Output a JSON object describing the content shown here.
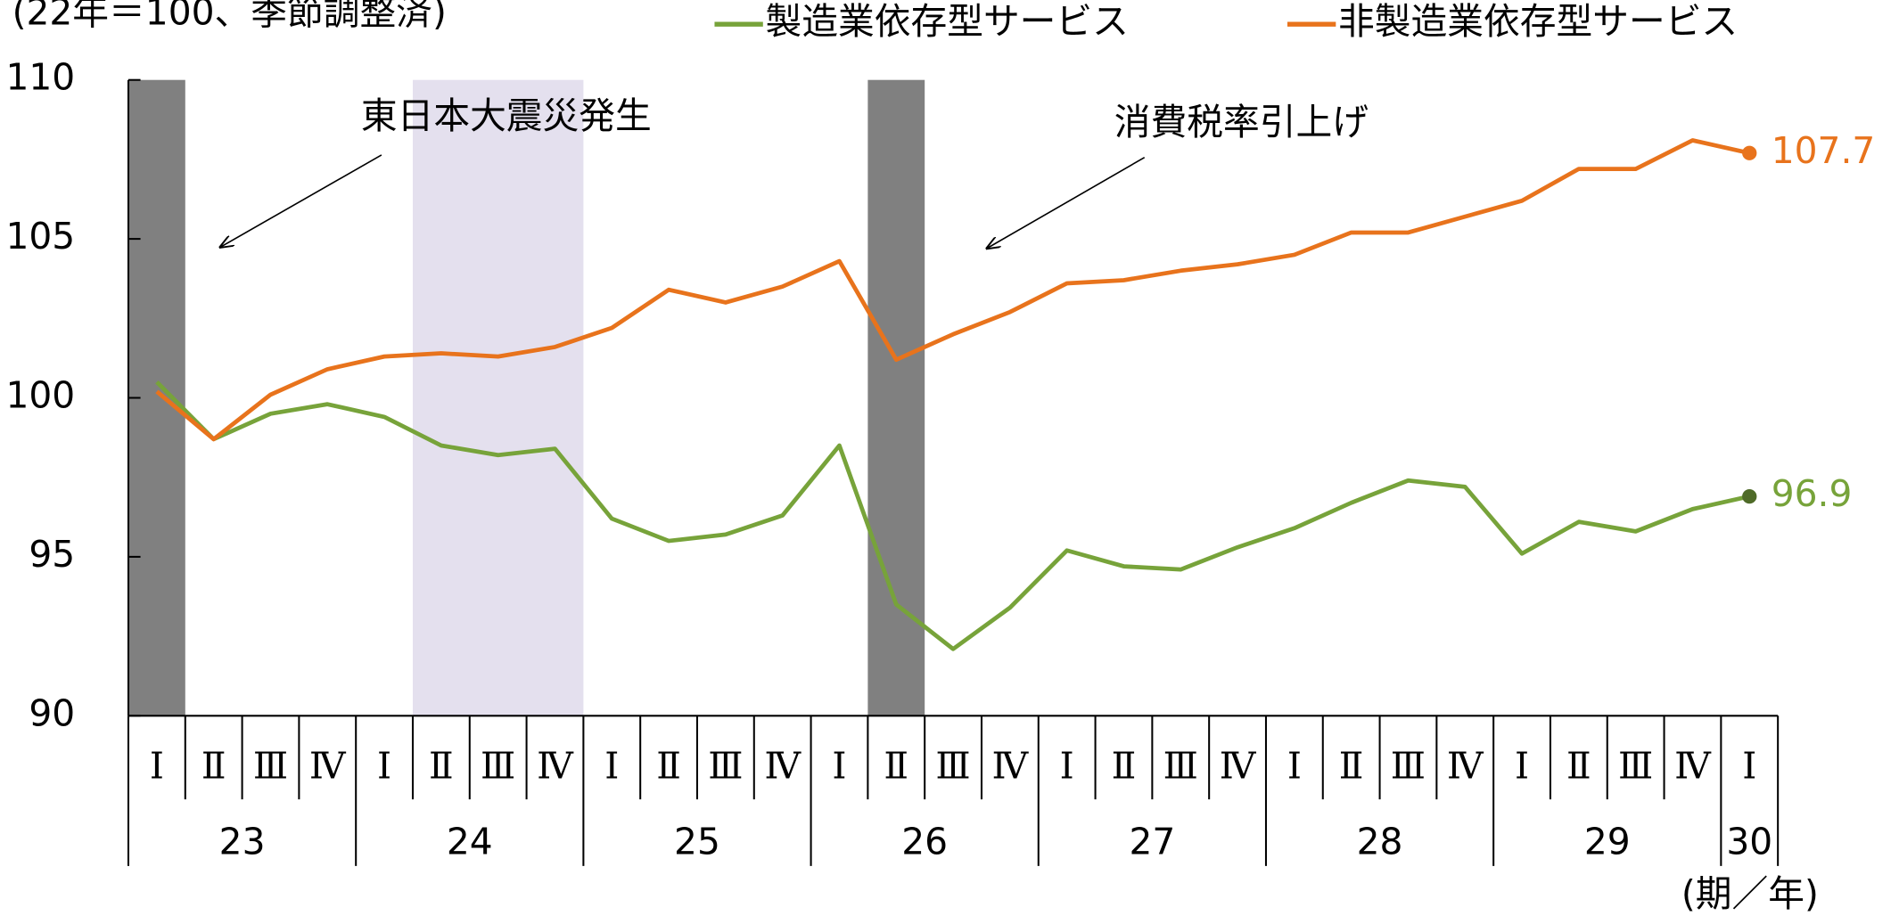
{
  "chart_data": {
    "type": "line",
    "subtitle": "(22年＝100、季節調整済)",
    "x_unit": "(期／年)",
    "categories": [
      "Ⅰ",
      "Ⅱ",
      "Ⅲ",
      "Ⅳ",
      "Ⅰ",
      "Ⅱ",
      "Ⅲ",
      "Ⅳ",
      "Ⅰ",
      "Ⅱ",
      "Ⅲ",
      "Ⅳ",
      "Ⅰ",
      "Ⅱ",
      "Ⅲ",
      "Ⅳ",
      "Ⅰ",
      "Ⅱ",
      "Ⅲ",
      "Ⅳ",
      "Ⅰ",
      "Ⅱ",
      "Ⅲ",
      "Ⅳ",
      "Ⅰ",
      "Ⅱ",
      "Ⅲ",
      "Ⅳ",
      "Ⅰ"
    ],
    "group_labels": [
      "23",
      "24",
      "25",
      "26",
      "27",
      "28",
      "29",
      "30"
    ],
    "series": [
      {
        "name": "製造業依存型サービス",
        "color": "#77a33a",
        "marker_color": "#4f6b28",
        "values": [
          100.5,
          98.7,
          99.5,
          99.8,
          99.4,
          98.5,
          98.2,
          98.4,
          96.2,
          95.5,
          95.7,
          96.3,
          98.5,
          93.5,
          92.1,
          93.4,
          95.2,
          94.7,
          94.6,
          95.3,
          95.9,
          96.7,
          97.4,
          97.2,
          95.1,
          96.1,
          95.8,
          96.5,
          96.9
        ]
      },
      {
        "name": "非製造業依存型サービス",
        "color": "#e8731c",
        "marker_color": "#e8731c",
        "values": [
          100.2,
          98.7,
          100.1,
          100.9,
          101.3,
          101.4,
          101.3,
          101.6,
          102.2,
          103.4,
          103.0,
          103.5,
          104.3,
          101.2,
          102.0,
          102.7,
          103.6,
          103.7,
          104.0,
          104.2,
          104.5,
          105.2,
          105.2,
          105.7,
          106.2,
          107.2,
          107.2,
          108.1,
          107.7
        ]
      }
    ],
    "shaded_periods": [
      {
        "start": 0,
        "end": 0,
        "color": "#808080"
      },
      {
        "start": 5,
        "end": 7,
        "color": "#e4e0ee"
      },
      {
        "start": 13,
        "end": 13,
        "color": "#808080"
      }
    ],
    "annotations": [
      "東日本大震災発生",
      "消費税率引上げ"
    ],
    "ylim": [
      90,
      110
    ],
    "yticks": [
      90,
      95,
      100,
      105,
      110
    ],
    "grid": false
  }
}
